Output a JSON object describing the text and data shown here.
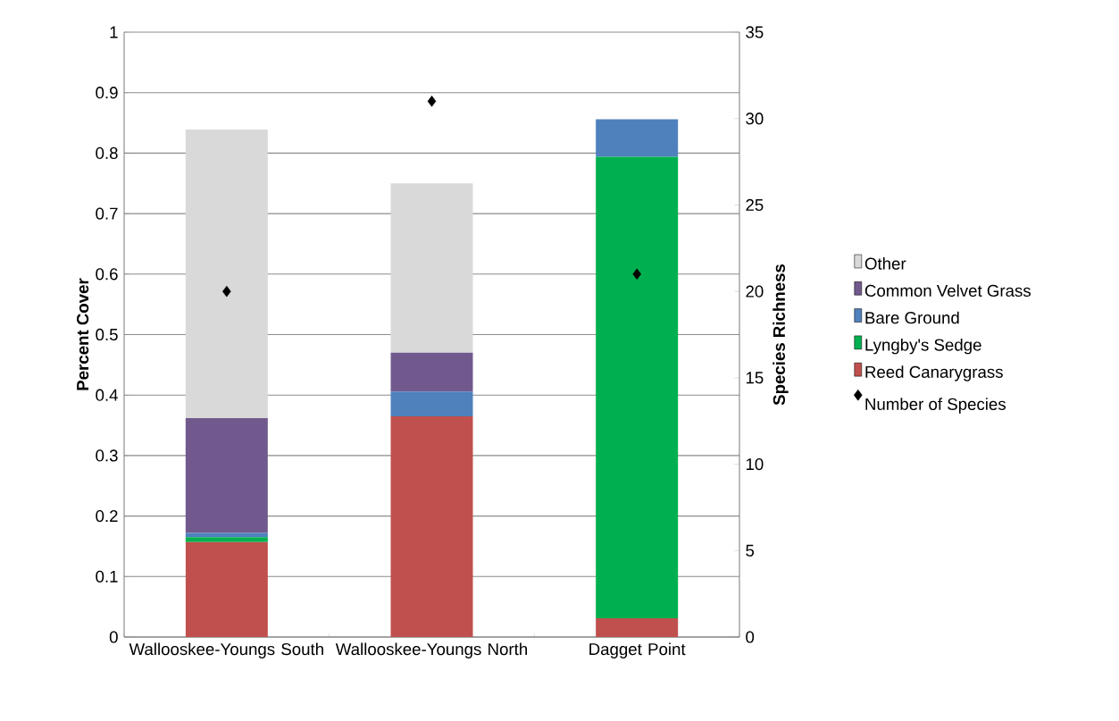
{
  "chart_data": {
    "type": "bar",
    "stacked": true,
    "categories": [
      "Wallooskee-Youngs South",
      "Wallooskee-Youngs North",
      "Dagget Point"
    ],
    "series": [
      {
        "name": "Reed Canarygrass",
        "color": "#c0504d",
        "values": [
          0.157,
          0.365,
          0.031
        ]
      },
      {
        "name": "Lyngby's Sedge",
        "color": "#00b050",
        "values": [
          0.008,
          0,
          0.763
        ]
      },
      {
        "name": "Bare Ground",
        "color": "#4f81bd",
        "values": [
          0.007,
          0.041,
          0.062
        ]
      },
      {
        "name": "Common Velvet Grass",
        "color": "#72598d",
        "values": [
          0.19,
          0.064,
          0
        ]
      },
      {
        "name": "Other",
        "color": "#d9d9d9",
        "values": [
          0.477,
          0.28,
          0
        ]
      },
      {
        "name": "Number of Species",
        "type": "scatter",
        "axis": "y2",
        "color": "#000000",
        "marker": "diamond",
        "values": [
          20,
          31,
          21
        ]
      }
    ],
    "ylabel": "Percent Cover",
    "y2label": "Species Richness",
    "ylim": [
      0,
      1
    ],
    "yticks": [
      0,
      0.1,
      0.2,
      0.3,
      0.4,
      0.5,
      0.6,
      0.7,
      0.8,
      0.9,
      1
    ],
    "y2lim": [
      0,
      35
    ],
    "y2ticks": [
      0,
      5,
      10,
      15,
      20,
      25,
      30,
      35
    ],
    "grid": "y",
    "legend": "right"
  }
}
